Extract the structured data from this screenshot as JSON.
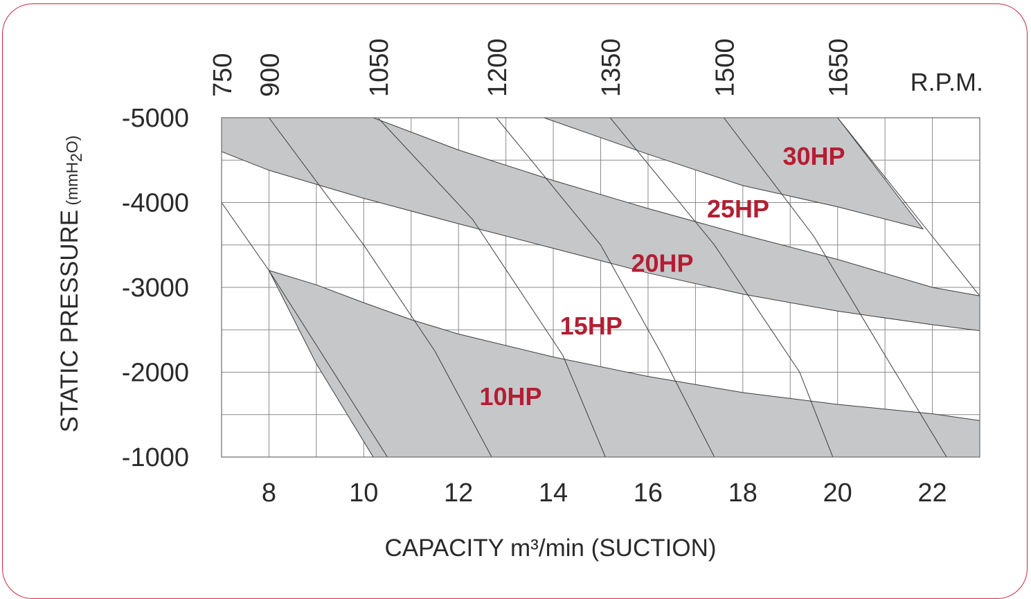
{
  "chart_data": {
    "type": "area",
    "title": "",
    "xlabel": "CAPACITY m³/min (SUCTION)",
    "ylabel_main": "STATIC PRESSURE",
    "ylabel_unit_prefix": " (mmH",
    "ylabel_unit_sub": "2",
    "ylabel_unit_suffix": "O)",
    "xlim": [
      7,
      23
    ],
    "ylim": [
      -1000,
      -5000
    ],
    "x_ticks": [
      "8",
      "10",
      "12",
      "14",
      "16",
      "18",
      "20",
      "22"
    ],
    "x_tick_values": [
      8,
      10,
      12,
      14,
      16,
      18,
      20,
      22
    ],
    "y_ticks": [
      "-5000",
      "-4000",
      "-3000",
      "-2000",
      "-1000"
    ],
    "y_tick_values": [
      -5000,
      -4000,
      -3000,
      -2000,
      -1000
    ],
    "rpm_label": "R.P.M.",
    "rpm_ticks": [
      "750",
      "900",
      "1050",
      "1200",
      "1350",
      "1500",
      "1650"
    ],
    "rpm_tick_values": [
      7,
      8,
      10.3,
      12.8,
      15.2,
      17.6,
      20
    ],
    "grid": true,
    "series": [
      {
        "name": "10HP",
        "label_at": [
          13.1,
          -1720
        ],
        "upper": [
          [
            8,
            -3200
          ],
          [
            9,
            -3030
          ],
          [
            10,
            -2820
          ],
          [
            11,
            -2620
          ],
          [
            12,
            -2450
          ],
          [
            14,
            -2180
          ],
          [
            16,
            -1950
          ],
          [
            18,
            -1760
          ],
          [
            20,
            -1620
          ],
          [
            22,
            -1510
          ],
          [
            23,
            -1430
          ]
        ],
        "lower": [
          [
            23,
            -1000
          ],
          [
            10.2,
            -1000
          ],
          [
            9,
            -2100
          ],
          [
            8,
            -3200
          ]
        ]
      },
      {
        "name": "15HP",
        "label_at": [
          14.8,
          -2550
        ],
        "labelled_only": true
      },
      {
        "name": "20HP",
        "label_at": [
          16.3,
          -3290
        ],
        "upper": [
          [
            7,
            -4600
          ],
          [
            8,
            -4380
          ],
          [
            10,
            -4050
          ],
          [
            12,
            -3750
          ],
          [
            14,
            -3460
          ],
          [
            16,
            -3170
          ],
          [
            18,
            -2920
          ],
          [
            20,
            -2720
          ],
          [
            22,
            -2560
          ],
          [
            23,
            -2490
          ]
        ],
        "lower": [
          [
            23,
            -2900
          ],
          [
            22,
            -3000
          ],
          [
            20,
            -3330
          ],
          [
            18,
            -3620
          ],
          [
            16,
            -3930
          ],
          [
            14,
            -4260
          ],
          [
            12,
            -4620
          ],
          [
            10.2,
            -5000
          ],
          [
            7,
            -5000
          ]
        ]
      },
      {
        "name": "25HP",
        "label_at": [
          17.9,
          -3930
        ],
        "labelled_only": true
      },
      {
        "name": "30HP",
        "label_at": [
          19.5,
          -4550
        ],
        "upper": [
          [
            13.8,
            -5000
          ],
          [
            16,
            -4570
          ],
          [
            18,
            -4200
          ],
          [
            20,
            -3950
          ],
          [
            21.8,
            -3690
          ]
        ],
        "lower": [
          [
            21.8,
            -3690
          ],
          [
            20,
            -5000
          ]
        ]
      }
    ],
    "rpm_curves": [
      [
        [
          7,
          -4000
        ],
        [
          8,
          -3200
        ],
        [
          10.5,
          -1000
        ]
      ],
      [
        [
          8,
          -5000
        ],
        [
          10,
          -3500
        ],
        [
          11.5,
          -2250
        ],
        [
          12.7,
          -1000
        ]
      ],
      [
        [
          10.3,
          -5000
        ],
        [
          12.3,
          -3800
        ],
        [
          14.2,
          -2200
        ],
        [
          15.1,
          -1000
        ]
      ],
      [
        [
          12.8,
          -5000
        ],
        [
          15,
          -3500
        ],
        [
          16.3,
          -2200
        ],
        [
          17.4,
          -1000
        ]
      ],
      [
        [
          15.2,
          -5000
        ],
        [
          17.4,
          -3500
        ],
        [
          19.2,
          -2000
        ],
        [
          19.9,
          -1000
        ]
      ],
      [
        [
          17.6,
          -5000
        ],
        [
          19.5,
          -3600
        ],
        [
          21,
          -2200
        ],
        [
          22.3,
          -1000
        ]
      ],
      [
        [
          20,
          -5000
        ],
        [
          22,
          -3600
        ],
        [
          23,
          -2900
        ]
      ]
    ]
  }
}
